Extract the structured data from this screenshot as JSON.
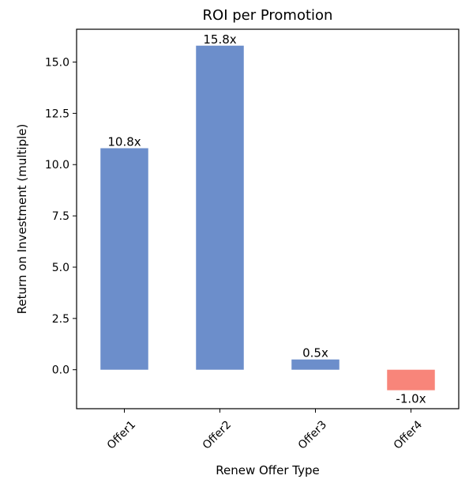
{
  "chart_data": {
    "type": "bar",
    "title": "ROI per Promotion",
    "xlabel": "Renew Offer Type",
    "ylabel": "Return on Investment (multiple)",
    "categories": [
      "Offer1",
      "Offer2",
      "Offer3",
      "Offer4"
    ],
    "values": [
      10.8,
      15.8,
      0.5,
      -1.0
    ],
    "data_labels": [
      "10.8x",
      "15.8x",
      "0.5x",
      "-1.0x"
    ],
    "ylim": [
      -1.9,
      16.6
    ],
    "yticks": [
      0.0,
      2.5,
      5.0,
      7.5,
      10.0,
      12.5,
      15.0
    ],
    "ytick_labels": [
      "0.0",
      "2.5",
      "5.0",
      "7.5",
      "10.0",
      "12.5",
      "15.0"
    ],
    "grid": false,
    "colors": {
      "positive": "#6c8ecb",
      "negative": "#f8857a",
      "axis": "#000000"
    }
  }
}
